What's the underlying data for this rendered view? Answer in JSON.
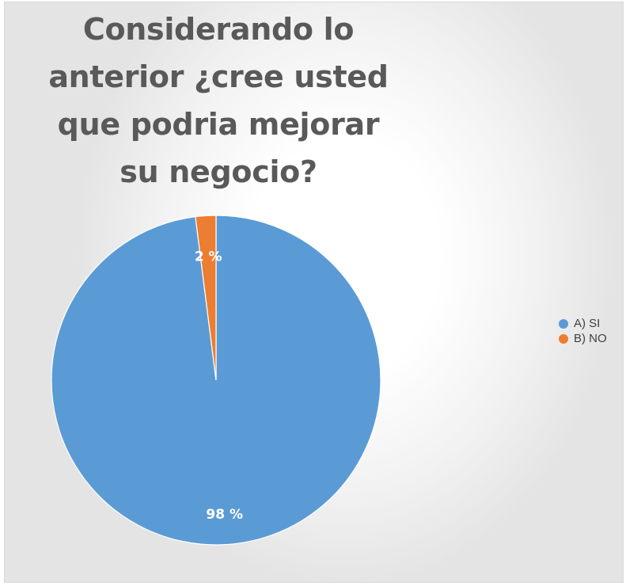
{
  "chart_data": {
    "type": "pie",
    "title": [
      "Considerando lo",
      "anterior ¿cree usted",
      "que podria mejorar",
      "su negocio?"
    ],
    "categories": [
      "A) SI",
      "B) NO"
    ],
    "values": [
      98,
      2
    ],
    "data_labels": [
      "98 %",
      "2 %"
    ],
    "colors": [
      "#5B9BD5",
      "#ED7D31"
    ],
    "legend_position": "right"
  }
}
